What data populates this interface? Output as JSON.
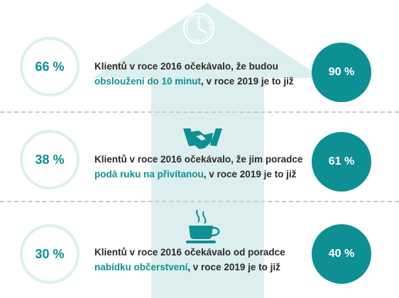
{
  "colors": {
    "accent": "#0e8f93",
    "arrow": "#dcefee",
    "ring": "#dcefee",
    "text": "#2a2a2a",
    "divider": "#c9c9c9"
  },
  "icons": [
    "clock-icon",
    "handshake-icon",
    "coffee-cup-icon"
  ],
  "chart_data": {
    "type": "table",
    "columns": [
      "2016",
      "2019"
    ],
    "rows": [
      {
        "value_2016": 66,
        "value_2019": 90,
        "label_2016": "66 %",
        "label_2019": "90 %",
        "text_before": "Klientů v roce 2016 očekávalo, že budou",
        "highlight": "obslouženi do 10 minut",
        "text_after": ", v roce 2019 je to již",
        "icon": "clock-icon"
      },
      {
        "value_2016": 38,
        "value_2019": 61,
        "label_2016": "38 %",
        "label_2019": "61 %",
        "text_before": "Klientů v roce 2016 očekávalo, že jim poradce",
        "highlight": "podá ruku na přivítanou",
        "text_after": ", v roce 2019 je to již",
        "icon": "handshake-icon"
      },
      {
        "value_2016": 30,
        "value_2019": 40,
        "label_2016": "30 %",
        "label_2019": "40 %",
        "text_before": "Klientů v roce 2016 očekávalo od poradce",
        "highlight": "nabídku občerstvení",
        "text_after": ", v roce 2019 je to již",
        "icon": "coffee-cup-icon"
      }
    ]
  }
}
